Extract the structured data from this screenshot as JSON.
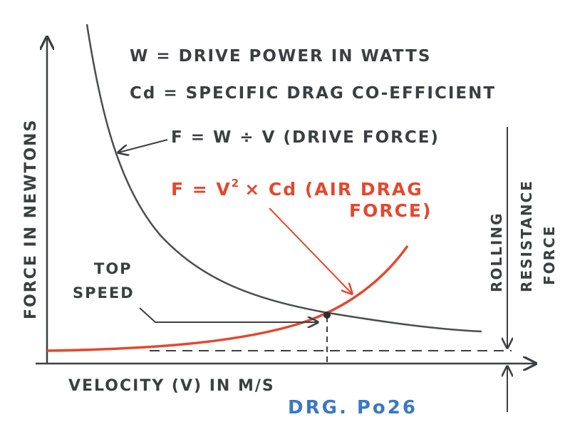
{
  "annotations": {
    "power_def": "W = DRIVE POWER IN WATTS",
    "cd_def": "Cd = SPECIFIC DRAG CO-EFFICIENT",
    "drive_force": "F = W ÷ V (DRIVE FORCE)",
    "air_drag_line1": "F = V",
    "air_drag_sup": "2",
    "air_drag_line1_rest": "× Cd (AIR DRAG",
    "air_drag_line2": "FORCE)",
    "top_speed_line1": "TOP",
    "top_speed_line2": "SPEED",
    "rolling_line1": "ROLLING",
    "rolling_line2": "RESISTANCE",
    "rolling_line3": "FORCE"
  },
  "axes": {
    "y_label": "FORCE IN NEWTONS",
    "x_label": "VELOCITY (V) IN M/S"
  },
  "drawing_ref": "DRG. Po26",
  "colors": {
    "ink": "#3b3f42",
    "drag": "#e2492e",
    "ref": "#3a78c4",
    "background": "#ffffff"
  }
}
